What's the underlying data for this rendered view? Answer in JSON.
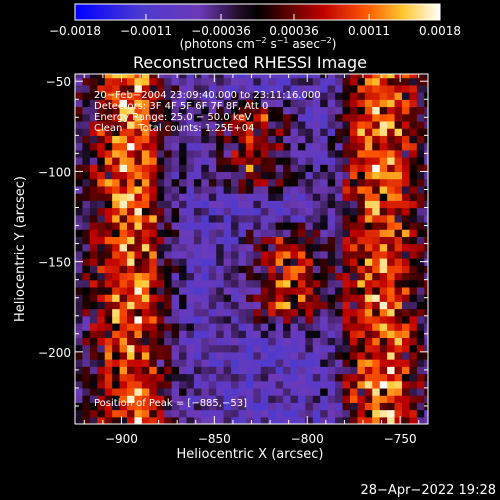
{
  "chart_data": {
    "type": "heatmap",
    "title": "Reconstructed RHESSI Image",
    "xlabel": "Heliocentric X (arcsec)",
    "ylabel": "Heliocentric Y (arcsec)",
    "xlim": [
      -925,
      -735
    ],
    "ylim": [
      -240,
      -46
    ],
    "x_ticks": [
      {
        "value": -900,
        "label": "−900"
      },
      {
        "value": -850,
        "label": "−850"
      },
      {
        "value": -800,
        "label": "−800"
      },
      {
        "value": -750,
        "label": "−750"
      }
    ],
    "y_ticks": [
      {
        "value": -50,
        "label": "−50"
      },
      {
        "value": -100,
        "label": "−100"
      },
      {
        "value": -150,
        "label": "−150"
      },
      {
        "value": -200,
        "label": "−200"
      }
    ],
    "annotations": {
      "time_range": "20−Feb−2004 23:09:40.000 to 23:11:16.000",
      "detectors": "Detectors: 3F 4F 5F 6F 7F 8F, Att 0",
      "energy_range": "Energy Range: 25.0 − 50.0 keV",
      "method_counts": "Clean     Total counts: 1.25E+04",
      "peak_position": "Position of Peak = [−885,−53]"
    },
    "colorbar": {
      "range": [
        -0.0018,
        0.0018
      ],
      "tick_labels": [
        "−0.0018",
        "−0.0011",
        "−0.00036",
        "0.00036",
        "0.0011",
        "0.0018"
      ],
      "tick_values": [
        -0.0018,
        -0.0011,
        -0.00036,
        0.00036,
        0.0011,
        0.0018
      ],
      "units_label": "(photons cm",
      "units_parts": [
        "(photons cm",
        "−2",
        " s",
        "−1",
        " asec",
        "−2",
        ")"
      ],
      "colors": [
        "#0000ff",
        "#5a2fc8",
        "#7c3cd8",
        "#000000",
        "#8a0000",
        "#e00000",
        "#ff6a00",
        "#ffd040",
        "#ffffff"
      ]
    },
    "grid": false,
    "colormap": "blue-purple-black-red-yellow-white",
    "peak_position": [
      -885,
      -53
    ],
    "bright_regions": [
      {
        "x_center": -895,
        "y_range": [
          -240,
          -46
        ],
        "value": 0.0014
      },
      {
        "x_center": -830,
        "y_range": [
          -70,
          -100
        ],
        "value": 0.0012
      },
      {
        "x_center": -810,
        "y_range": [
          -140,
          -175
        ],
        "value": 0.0013
      },
      {
        "x_center": -760,
        "y_range": [
          -46,
          -240
        ],
        "value": 0.0014
      }
    ]
  },
  "footer": {
    "date": "28−Apr−2022 19:28"
  }
}
